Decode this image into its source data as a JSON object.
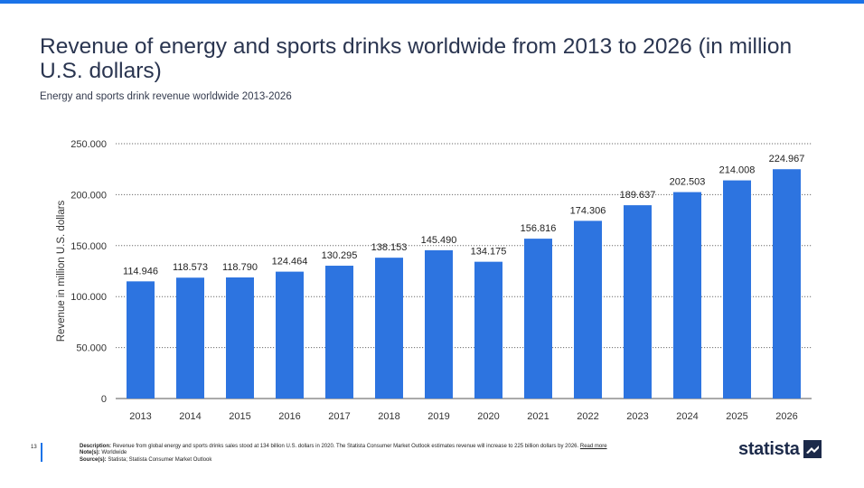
{
  "accent_color": "#1a73e8",
  "bar_color": "#2d74e0",
  "title": "Revenue of energy and sports drinks worldwide from 2013 to 2026 (in million U.S. dollars)",
  "subtitle": "Energy and sports drink revenue worldwide 2013-2026",
  "page_number": "13",
  "footer": {
    "description_label": "Description:",
    "description_text": " Revenue from global energy and sports drinks sales stood at 134 billion U.S. dollars in 2020. The Statista Consumer Market Outlook estimates revenue will increase to 225 billion dollars by 2026.",
    "read_more": "Read more",
    "notes_label": "Note(s):",
    "notes_text": " Worldwide",
    "source_label": "Source(s):",
    "source_text": " Statista; Statista Consumer Market Outlook"
  },
  "logo": {
    "text": "statista",
    "icon": "statista-logo-icon"
  },
  "chart_data": {
    "type": "bar",
    "title": "Revenue of energy and sports drinks worldwide from 2013 to 2026 (in million U.S. dollars)",
    "subtitle": "Energy and sports drink revenue worldwide 2013-2026",
    "xlabel": "",
    "ylabel": "Revenue in million U.S. dollars",
    "ylim": [
      0,
      250000
    ],
    "yticks": [
      0,
      50000,
      100000,
      150000,
      200000,
      250000
    ],
    "ytick_labels": [
      "0",
      "50.000",
      "100.000",
      "150.000",
      "200.000",
      "250.000"
    ],
    "grid": true,
    "categories": [
      "2013",
      "2014",
      "2015",
      "2016",
      "2017",
      "2018",
      "2019",
      "2020",
      "2021",
      "2022",
      "2023",
      "2024",
      "2025",
      "2026"
    ],
    "values": [
      114946,
      118573,
      118790,
      124464,
      130295,
      138153,
      145490,
      134175,
      156816,
      174306,
      189637,
      202503,
      214008,
      224967
    ],
    "data_labels": [
      "114.946",
      "118.573",
      "118.790",
      "124.464",
      "130.295",
      "138.153",
      "145.490",
      "134.175",
      "156.816",
      "174.306",
      "189.637",
      "202.503",
      "214.008",
      "224.967"
    ]
  }
}
